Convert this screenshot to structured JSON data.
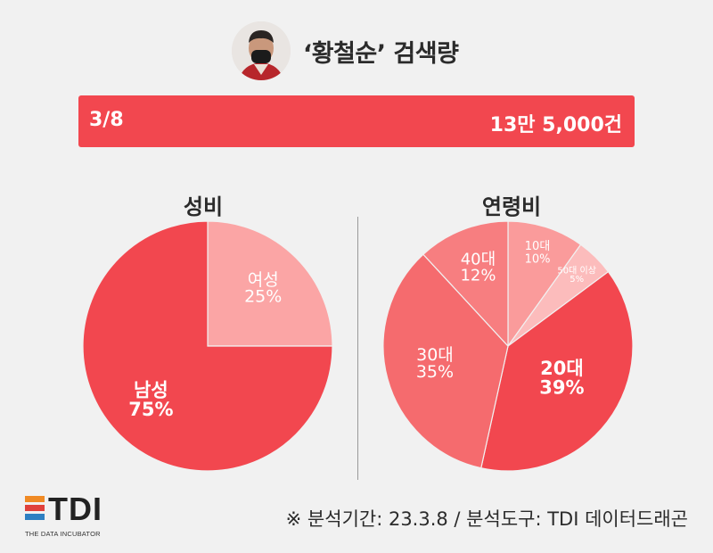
{
  "header": {
    "title": "‘황철순’ 검색량"
  },
  "summary": {
    "date": "3/8",
    "count": "13만 5,000건"
  },
  "chart_data": [
    {
      "type": "pie",
      "title": "성비",
      "slices": [
        {
          "label": "여성",
          "value": 25,
          "value_label": "25%",
          "color": "#fba5a5"
        },
        {
          "label": "남성",
          "value": 75,
          "value_label": "75%",
          "color": "#f2474f"
        }
      ]
    },
    {
      "type": "pie",
      "title": "연령비",
      "slices": [
        {
          "label": "10대",
          "value": 10,
          "value_label": "10%",
          "color": "#fa9b9b"
        },
        {
          "label": "50대 이상",
          "value": 5,
          "value_label": "5%",
          "color": "#fcbcbc"
        },
        {
          "label": "20대",
          "value": 39,
          "value_label": "39%",
          "color": "#f2474f"
        },
        {
          "label": "30대",
          "value": 35,
          "value_label": "35%",
          "color": "#f56b6e"
        },
        {
          "label": "40대",
          "value": 12,
          "value_label": "12%",
          "color": "#f77e80"
        }
      ]
    }
  ],
  "footer": {
    "logo_text": "TDI",
    "logo_subtitle": "THE DATA INCUBATOR",
    "logo_colors": [
      "#f08a24",
      "#e0413b",
      "#2e7fc2"
    ],
    "source": "※ 분석기간: 23.3.8 / 분석도구: TDI 데이터드래곤"
  }
}
